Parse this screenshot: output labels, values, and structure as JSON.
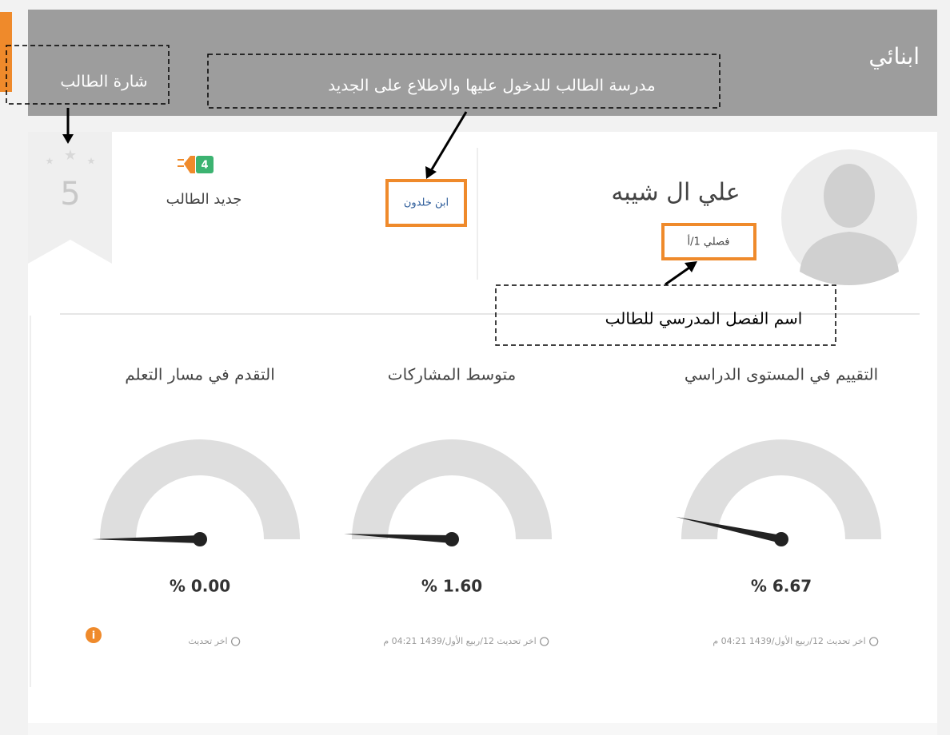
{
  "header": {
    "title": "ابنائي"
  },
  "annotations": [
    "شارة الطالب",
    "مدرسة الطالب للدخول عليها والاطلاع على الجديد",
    "اسم الفصل المدرسي للطالب"
  ],
  "badge": {
    "level": 5
  },
  "news": {
    "label": "جديد الطالب",
    "count": 4
  },
  "school": "ابن خلدون",
  "student": {
    "name": "علي ال شيبه",
    "class": "فصلي 1/أ"
  },
  "gauges": [
    {
      "title": "التقييم في المستوى الدراسي",
      "value": 6.67,
      "value_label": "% 6.67",
      "updated": "اخر تحديث 12/ربيع الأول/1439 04:21 م"
    },
    {
      "title": "متوسط المشاركات",
      "value": 1.6,
      "value_label": "% 1.60",
      "updated": "اخر تحديث 12/ربيع الأول/1439 04:21 م"
    },
    {
      "title": "التقدم في مسار التعلم",
      "value": 0,
      "value_label": "% 0.00",
      "updated": "اخر تحديث"
    }
  ]
}
